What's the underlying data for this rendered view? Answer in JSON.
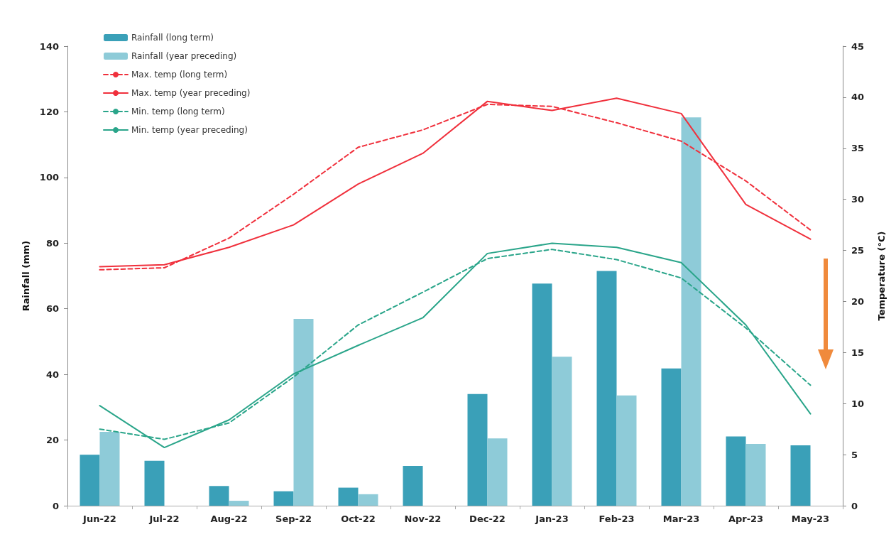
{
  "chart_data": {
    "type": "bar",
    "xlabel": null,
    "ylabel": "Rainfall (mm)",
    "y2label": "Temperature (°C)",
    "categories": [
      "Jun-22",
      "Jul-22",
      "Aug-22",
      "Sep-22",
      "Oct-22",
      "Nov-22",
      "Dec-22",
      "Jan-23",
      "Feb-23",
      "Mar-23",
      "Apr-23",
      "May-23"
    ],
    "series": [
      {
        "name": "Rainfall (long term)",
        "color": "#3aa0b8",
        "values": [
          15.5,
          13.7,
          6.0,
          4.4,
          5.5,
          12.1,
          34.0,
          67.7,
          71.5,
          41.8,
          21.1,
          18.4
        ]
      },
      {
        "name": "Rainfall (year preceding)",
        "color": "#8ecbd8",
        "values": [
          22.5,
          null,
          1.5,
          56.9,
          3.5,
          null,
          20.5,
          45.4,
          33.6,
          118.3,
          18.8,
          null
        ]
      },
      {
        "name": "Max. temp (long term)",
        "type": "line",
        "axis": "y2",
        "line_style": "dashed",
        "color": "#f0303c",
        "values": [
          23.1,
          23.3,
          26.2,
          30.5,
          35.1,
          36.8,
          39.3,
          39.1,
          37.5,
          35.7,
          31.8,
          27.0
        ]
      },
      {
        "name": "Max. temp (year preceding)",
        "type": "line",
        "axis": "y2",
        "line_style": "solid",
        "color": "#f0303c",
        "values": [
          23.4,
          23.6,
          25.3,
          27.5,
          31.5,
          34.5,
          39.6,
          38.7,
          39.9,
          38.4,
          29.5,
          26.1
        ]
      },
      {
        "name": "Min. temp (long term)",
        "type": "line",
        "axis": "y2",
        "line_style": "dashed",
        "color": "#2aa58a",
        "values": [
          7.5,
          6.5,
          8.1,
          12.6,
          17.7,
          20.9,
          24.2,
          25.1,
          24.1,
          22.3,
          17.4,
          11.8
        ]
      },
      {
        "name": "Min. temp (year preceding)",
        "type": "line",
        "axis": "y2",
        "line_style": "solid",
        "color": "#2aa58a",
        "values": [
          9.8,
          5.7,
          8.4,
          12.9,
          15.7,
          18.4,
          24.7,
          25.7,
          25.3,
          23.8,
          17.7,
          9.0
        ]
      }
    ],
    "ylim": [
      0,
      140
    ],
    "yticks": [
      0,
      20,
      40,
      60,
      80,
      100,
      120,
      140
    ],
    "y2lim": [
      0,
      45
    ],
    "y2ticks": [
      0,
      5,
      10,
      15,
      20,
      25,
      30,
      35,
      40,
      45
    ],
    "marker": "none",
    "grid": false,
    "legend": "top left"
  }
}
